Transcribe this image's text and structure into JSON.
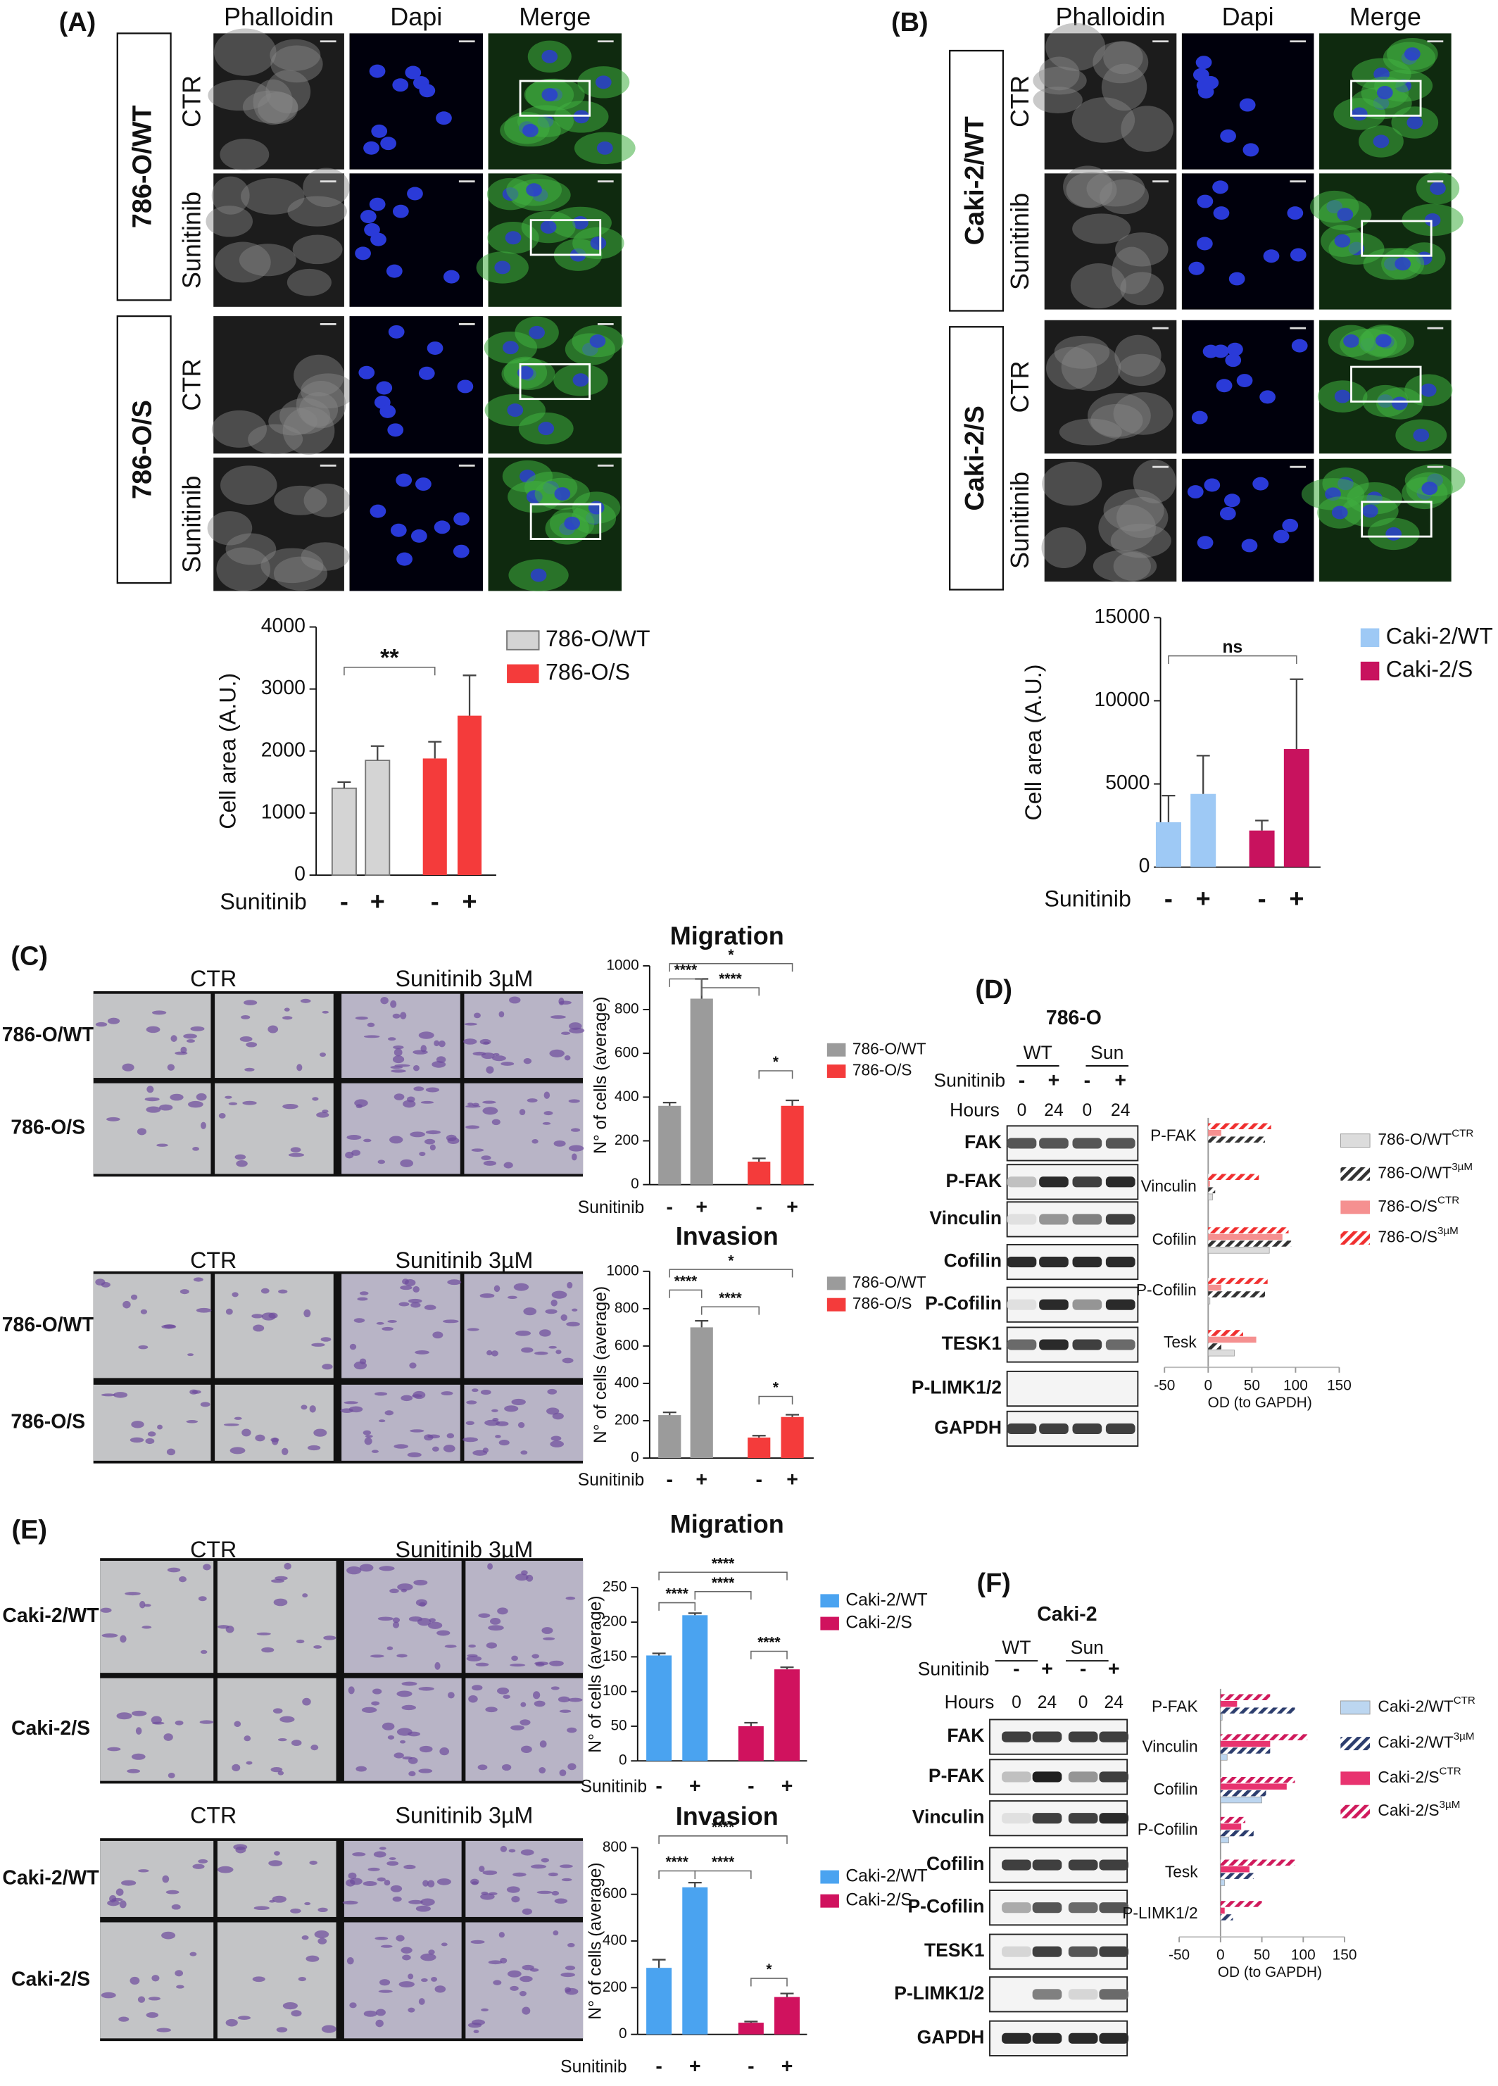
{
  "panel_a": {
    "label": "(A)",
    "columns": [
      "Phalloidin",
      "Dapi",
      "Merge"
    ],
    "groups": [
      {
        "name": "786-O/WT",
        "rows": [
          "CTR",
          "Sunitinib"
        ]
      },
      {
        "name": "786-O/S",
        "rows": [
          "CTR",
          "Sunitinib"
        ]
      }
    ]
  },
  "panel_b": {
    "label": "(B)",
    "columns": [
      "Phalloidin",
      "Dapi",
      "Merge"
    ],
    "groups": [
      {
        "name": "Caki-2/WT",
        "rows": [
          "CTR",
          "Sunitinib"
        ]
      },
      {
        "name": "Caki-2/S",
        "rows": [
          "CTR",
          "Sunitinib"
        ]
      }
    ]
  },
  "panel_c": {
    "label": "(C)",
    "columns": [
      "CTR",
      "Sunitinib 3µM"
    ],
    "rows": [
      "786-O/WT",
      "786-O/S"
    ]
  },
  "panel_e": {
    "label": "(E)",
    "columns": [
      "CTR",
      "Sunitinib 3µM"
    ],
    "rows": [
      "Caki-2/WT",
      "Caki-2/S"
    ]
  },
  "panel_d": {
    "label": "(D)",
    "title": "786-O",
    "groups": [
      "WT",
      "Sun"
    ],
    "treatment_label": "Sunitinib",
    "treatment": [
      "-",
      "+",
      "-",
      "+"
    ],
    "time_label": "Hours",
    "times": [
      0,
      24,
      0,
      24
    ],
    "proteins": [
      "FAK",
      "P-FAK",
      "Vinculin",
      "Cofilin",
      "P-Cofilin",
      "TESK1",
      "P-LIMK1/2",
      "GAPDH"
    ]
  },
  "panel_f": {
    "label": "(F)",
    "title": "Caki-2",
    "groups": [
      "WT",
      "Sun"
    ],
    "treatment_label": "Sunitinib",
    "treatment": [
      "-",
      "+",
      "-",
      "+"
    ],
    "time_label": "Hours",
    "times": [
      0,
      24,
      0,
      24
    ],
    "proteins": [
      "FAK",
      "P-FAK",
      "Vinculin",
      "Cofilin",
      "P-Cofilin",
      "TESK1",
      "P-LIMK1/2",
      "GAPDH"
    ]
  },
  "chart_data": [
    {
      "type": "bar",
      "y_label": "Cell area (A.U.)",
      "x_label": "Sunitinib",
      "categories": [
        "-",
        "+",
        "-",
        "+"
      ],
      "series": [
        {
          "name": "786-O/WT",
          "color": "#d4d4d4",
          "values": [
            1400,
            1850,
            null,
            null
          ],
          "errors": [
            100,
            230,
            null,
            null
          ]
        },
        {
          "name": "786-O/S",
          "color": "#f43b3b",
          "values": [
            null,
            null,
            1880,
            2570
          ],
          "errors": [
            null,
            null,
            270,
            650
          ]
        }
      ],
      "ylim": [
        0,
        4000
      ],
      "yticks": [
        0,
        1000,
        2000,
        3000,
        4000
      ],
      "annotations": [
        "**"
      ]
    },
    {
      "type": "bar",
      "y_label": "Cell area (A.U.)",
      "x_label": "Sunitinib",
      "categories": [
        "-",
        "+",
        "-",
        "+"
      ],
      "series": [
        {
          "name": "Caki-2/WT",
          "color": "#9ec9f5",
          "values": [
            2700,
            4400,
            null,
            null
          ],
          "errors": [
            1600,
            2300,
            null,
            null
          ]
        },
        {
          "name": "Caki-2/S",
          "color": "#c8125e",
          "values": [
            null,
            null,
            2200,
            7100
          ],
          "errors": [
            null,
            null,
            600,
            4200
          ]
        }
      ],
      "ylim": [
        0,
        15000
      ],
      "yticks": [
        0,
        5000,
        10000,
        15000
      ],
      "annotations": [
        "ns"
      ]
    },
    {
      "type": "bar",
      "title": "Migration",
      "y_label": "N° of cells (average)",
      "x_label": "Sunitinib",
      "categories": [
        "-",
        "+",
        "-",
        "+"
      ],
      "series": [
        {
          "name": "786-O/WT",
          "color": "#9b9b9b",
          "values": [
            360,
            850,
            null,
            null
          ],
          "errors": [
            15,
            90,
            null,
            null
          ]
        },
        {
          "name": "786-O/S",
          "color": "#f43b3b",
          "values": [
            null,
            null,
            105,
            360
          ],
          "errors": [
            null,
            null,
            15,
            25
          ]
        }
      ],
      "ylim": [
        0,
        1000
      ],
      "yticks": [
        0,
        200,
        400,
        600,
        800,
        1000
      ],
      "annotations": [
        "*",
        "****",
        "****",
        "*"
      ]
    },
    {
      "type": "bar",
      "title": "Invasion",
      "y_label": "N° of cells (average)",
      "x_label": "Sunitinib",
      "categories": [
        "-",
        "+",
        "-",
        "+"
      ],
      "series": [
        {
          "name": "786-O/WT",
          "color": "#9b9b9b",
          "values": [
            230,
            700,
            null,
            null
          ],
          "errors": [
            15,
            35,
            null,
            null
          ]
        },
        {
          "name": "786-O/S",
          "color": "#f43b3b",
          "values": [
            null,
            null,
            110,
            220
          ],
          "errors": [
            null,
            null,
            10,
            12
          ]
        }
      ],
      "ylim": [
        0,
        1000
      ],
      "yticks": [
        0,
        200,
        400,
        600,
        800,
        1000
      ],
      "annotations": [
        "*",
        "****",
        "****",
        "*"
      ]
    },
    {
      "type": "bar",
      "title": "Migration",
      "y_label": "N° of cells (average)",
      "x_label": "Sunitinib",
      "categories": [
        "-",
        "+",
        "-",
        "+"
      ],
      "series": [
        {
          "name": "Caki-2/WT",
          "color": "#4aa3f0",
          "values": [
            152,
            210,
            null,
            null
          ],
          "errors": [
            3,
            3,
            null,
            null
          ]
        },
        {
          "name": "Caki-2/S",
          "color": "#d0125e",
          "values": [
            null,
            null,
            50,
            132
          ],
          "errors": [
            null,
            null,
            5,
            3
          ]
        }
      ],
      "ylim": [
        0,
        250
      ],
      "yticks": [
        0,
        50,
        100,
        150,
        200,
        250
      ],
      "annotations": [
        "****",
        "****",
        "****",
        "****"
      ]
    },
    {
      "type": "bar",
      "title": "Invasion",
      "y_label": "N° of cells (average)",
      "x_label": "Sunitinib",
      "categories": [
        "-",
        "+",
        "-",
        "+"
      ],
      "series": [
        {
          "name": "Caki-2/WT",
          "color": "#4aa3f0",
          "values": [
            285,
            630,
            null,
            null
          ],
          "errors": [
            35,
            20,
            null,
            null
          ]
        },
        {
          "name": "Caki-2/S",
          "color": "#d0125e",
          "values": [
            null,
            null,
            50,
            160
          ],
          "errors": [
            null,
            null,
            5,
            15
          ]
        }
      ],
      "ylim": [
        0,
        800
      ],
      "yticks": [
        0,
        200,
        400,
        600,
        800
      ],
      "annotations": [
        "****",
        "****",
        "****",
        "*"
      ]
    },
    {
      "type": "hbar",
      "x_label": "OD (to GAPDH)",
      "categories": [
        "P-FAK",
        "Vinculin",
        "Cofilin",
        "P-Cofilin",
        "Tesk"
      ],
      "series": [
        {
          "name": "786-O/WT",
          "name_sup": "CTR",
          "color": "#dcdcdc",
          "pattern": "solid",
          "values": [
            0,
            5,
            70,
            2,
            30
          ]
        },
        {
          "name": "786-O/WT",
          "name_sup": "3µM",
          "color": "#333333",
          "pattern": "hatch",
          "values": [
            65,
            8,
            95,
            65,
            15
          ]
        },
        {
          "name": "786-O/S",
          "name_sup": "CTR",
          "color": "#f59090",
          "pattern": "solid",
          "values": [
            15,
            2,
            85,
            15,
            55
          ]
        },
        {
          "name": "786-O/S",
          "name_sup": "3µM",
          "color": "#f03030",
          "pattern": "hatch",
          "values": [
            72,
            58,
            92,
            68,
            40
          ]
        }
      ],
      "xlim": [
        -50,
        150
      ],
      "xticks": [
        -50,
        0,
        50,
        100,
        150
      ]
    },
    {
      "type": "hbar",
      "x_label": "OD (to GAPDH)",
      "categories": [
        "P-FAK",
        "Vinculin",
        "Cofilin",
        "P-Cofilin",
        "Tesk",
        "P-LIMK1/2"
      ],
      "series": [
        {
          "name": "Caki-2/WT",
          "name_sup": "CTR",
          "color": "#bcd6f0",
          "pattern": "solid",
          "values": [
            2,
            8,
            50,
            10,
            5,
            0
          ]
        },
        {
          "name": "Caki-2/WT",
          "name_sup": "3µM",
          "color": "#2d3e6e",
          "pattern": "hatch",
          "values": [
            90,
            60,
            55,
            40,
            40,
            15
          ]
        },
        {
          "name": "Caki-2/S",
          "name_sup": "CTR",
          "color": "#e8336f",
          "pattern": "solid",
          "values": [
            20,
            60,
            80,
            25,
            35,
            5
          ]
        },
        {
          "name": "Caki-2/S",
          "name_sup": "3µM",
          "color": "#d01a5c",
          "pattern": "hatch",
          "values": [
            60,
            105,
            90,
            30,
            90,
            50
          ]
        }
      ],
      "xlim": [
        -50,
        150
      ],
      "xticks": [
        -50,
        0,
        50,
        100,
        150
      ]
    }
  ]
}
